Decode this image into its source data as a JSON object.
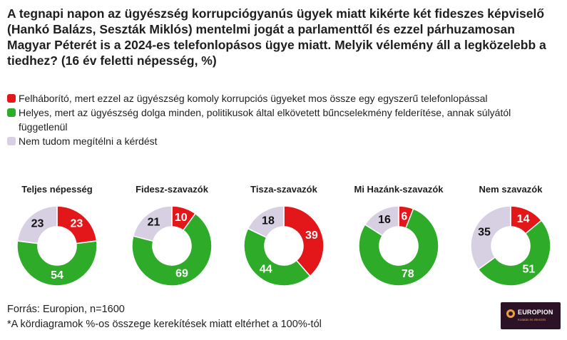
{
  "title": "A tegnapi napon az ügyészség korrupciógyanús ügyek miatt kikérte két fideszes képviselő (Hankó Balázs, Seszták Miklós) mentelmi jogát a parlamenttől és ezzel párhuzamosan Magyar Péterét is a 2024-es telefonlopásos ügye miatt. Melyik vélemény áll a legközelebb a tiedhez? (16 év feletti népesség, %)",
  "legend": [
    {
      "label": "Felháborító, mert ezzel az ügyészség komoly korrupciós ügyeket mos össze egy egyszerű telefonlopással",
      "color": "#e3161a"
    },
    {
      "label": "Helyes, mert az ügyészség dolga minden, politikusok által elkövetett bűncselekmény felderítése, annak súlyától függetlenül",
      "color": "#2eac29"
    },
    {
      "label": "Nem tudom megítélni a kérdést",
      "color": "#d6d0e2"
    }
  ],
  "chart_data": {
    "type": "pie",
    "series_names": [
      "Felháborító, mert ezzel az ügyészség komoly korrupciós ügyeket mos össze egy egyszerű telefonlopással",
      "Helyes, mert az ügyészség dolga minden, politikusok által elkövetett bűncselekmény felderítése, annak súlyától függetlenül",
      "Nem tudom megítélni a kérdést"
    ],
    "colors": [
      "#e3161a",
      "#2eac29",
      "#d6d0e2"
    ],
    "charts": [
      {
        "label": "Teljes népesség",
        "values": [
          23,
          54,
          23
        ]
      },
      {
        "label": "Fidesz-szavazók",
        "values": [
          10,
          69,
          21
        ]
      },
      {
        "label": "Tisza-szavazók",
        "values": [
          39,
          44,
          18
        ]
      },
      {
        "label": "Mi Hazánk-szavazók",
        "values": [
          6,
          78,
          16
        ]
      },
      {
        "label": "Nem szavazók",
        "values": [
          14,
          51,
          35
        ]
      }
    ]
  },
  "source": "Forrás: Europion, n=1600",
  "note": "*A kördiagramok %-os összege kerekítések miatt eltérhet a 100%-tól",
  "logo": {
    "name": "EUROPION",
    "tagline": "Kutatás és elemzés"
  }
}
